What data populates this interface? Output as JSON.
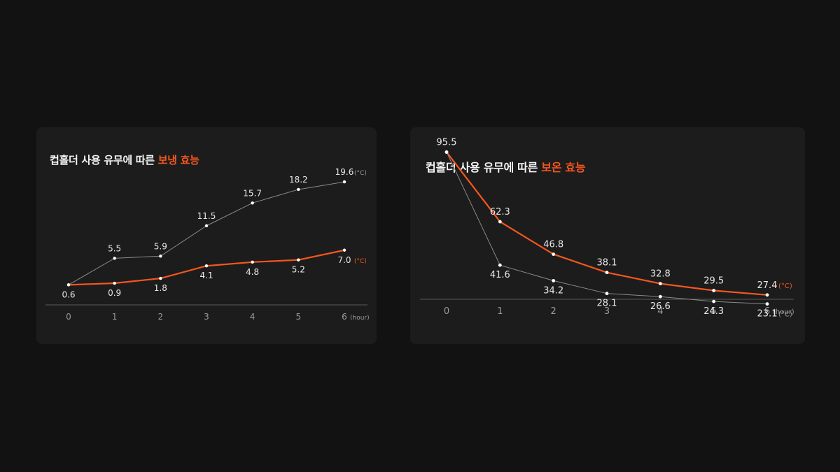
{
  "colors": {
    "background": "#121212",
    "card": "#1c1c1c",
    "accent": "#f5561e",
    "secondary_line": "#8a8a8a",
    "marker": "#ffffff",
    "axis": "#5a5a5a",
    "label": "#e8e8e8",
    "muted": "#9a9a9a"
  },
  "chart_data": [
    {
      "type": "line",
      "title": {
        "prefix": "컵홀더 사용 유무에 따른 ",
        "highlight": "보냉 효능"
      },
      "x": [
        0,
        1,
        2,
        3,
        4,
        5,
        6
      ],
      "x_tick_labels": [
        "0",
        "1",
        "2",
        "3",
        "4",
        "5",
        "6"
      ],
      "x_unit": "(hour)",
      "ylim": [
        0,
        20
      ],
      "grid": false,
      "series": [
        {
          "role": "secondary",
          "color": "#8a8a8a",
          "values": [
            0.6,
            5.5,
            5.9,
            11.5,
            15.7,
            18.2,
            19.6
          ],
          "labels": [
            "",
            "5.5",
            "5.9",
            "11.5",
            "15.7",
            "18.2",
            "19.6"
          ],
          "end_unit": "(°C)"
        },
        {
          "role": "accent",
          "color": "#f5561e",
          "values": [
            0.6,
            0.9,
            1.8,
            4.1,
            4.8,
            5.2,
            7.0
          ],
          "labels": [
            "0.6",
            "0.9",
            "1.8",
            "4.1",
            "4.8",
            "5.2",
            "7.0"
          ],
          "end_unit": "(°C)"
        }
      ]
    },
    {
      "type": "line",
      "title": {
        "prefix": "컵홀더 사용 유무에 따른 ",
        "highlight": "보온 효능"
      },
      "x": [
        0,
        1,
        2,
        3,
        4,
        5,
        6
      ],
      "x_tick_labels": [
        "0",
        "1",
        "2",
        "3",
        "4",
        "5",
        "6"
      ],
      "x_unit": "(hour)",
      "ylim": [
        20,
        100
      ],
      "grid": false,
      "series": [
        {
          "role": "accent",
          "color": "#f5561e",
          "values": [
            95.5,
            62.3,
            46.8,
            38.1,
            32.8,
            29.5,
            27.4
          ],
          "labels": [
            "95.5",
            "62.3",
            "46.8",
            "38.1",
            "32.8",
            "29.5",
            "27.4"
          ],
          "end_unit": "(°C)"
        },
        {
          "role": "secondary",
          "color": "#8a8a8a",
          "values": [
            95.5,
            41.6,
            34.2,
            28.1,
            26.6,
            24.3,
            23.1
          ],
          "labels": [
            "",
            "41.6",
            "34.2",
            "28.1",
            "26.6",
            "24.3",
            "23.1"
          ],
          "end_unit": "(°C)"
        }
      ]
    }
  ]
}
